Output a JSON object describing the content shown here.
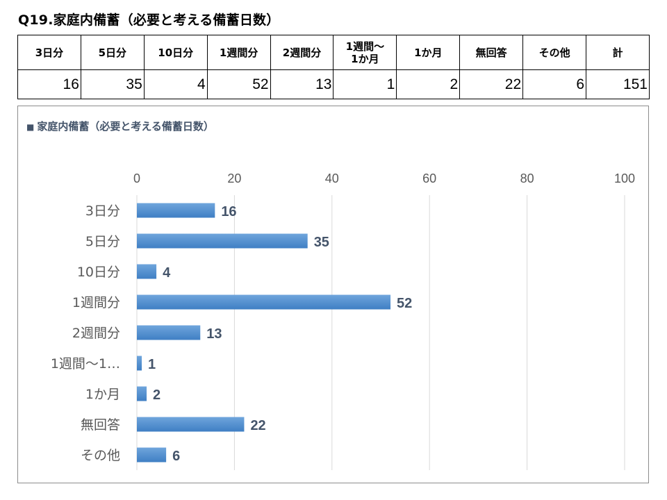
{
  "page_title": "Q19.家庭内備蓄（必要と考える備蓄日数）",
  "table": {
    "headers": [
      "3日分",
      "5日分",
      "10日分",
      "1週間分",
      "2週間分",
      "1週間〜\n1か月",
      "1か月",
      "無回答",
      "その他",
      "計"
    ],
    "values": [
      "16",
      "35",
      "4",
      "52",
      "13",
      "1",
      "2",
      "22",
      "6",
      "151"
    ]
  },
  "chart_data": {
    "type": "bar",
    "orientation": "horizontal",
    "title": "家庭内備蓄（必要と考える備蓄日数）",
    "title_marker": "■",
    "categories": [
      "3日分",
      "5日分",
      "10日分",
      "1週間分",
      "2週間分",
      "1週間〜1…",
      "1か月",
      "無回答",
      "その他"
    ],
    "values": [
      16,
      35,
      4,
      52,
      13,
      1,
      2,
      22,
      6
    ],
    "xlim": [
      0,
      100
    ],
    "xticks": [
      0,
      20,
      40,
      60,
      80,
      100
    ],
    "x_axis_position": "top",
    "grid": true,
    "data_labels": true,
    "legend": false,
    "colors": {
      "bar_top": "#6fa5dc",
      "bar_bottom": "#3f7fc4",
      "grid": "#d9d9d9",
      "axis_text": "#595959",
      "data_label": "#44546a"
    }
  }
}
